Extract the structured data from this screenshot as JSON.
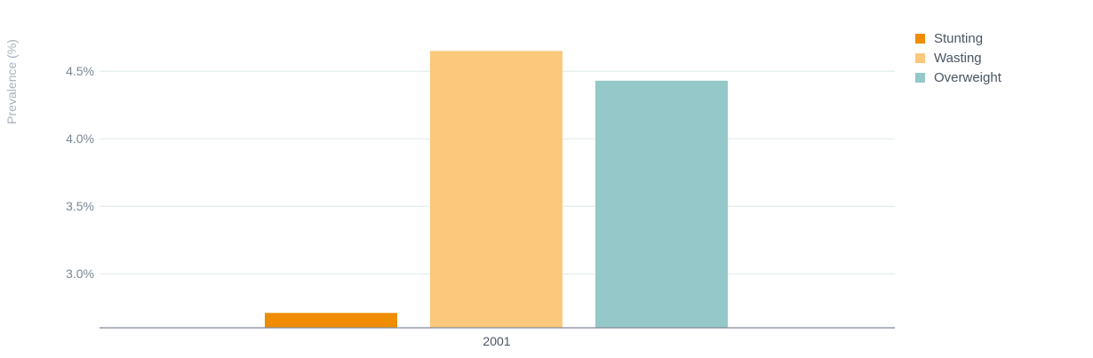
{
  "chart_data": {
    "type": "bar",
    "categories": [
      "2001"
    ],
    "series": [
      {
        "name": "Stunting",
        "values": [
          2.71
        ],
        "color": "#ef8c00"
      },
      {
        "name": "Wasting",
        "values": [
          4.65
        ],
        "color": "#fbc87c"
      },
      {
        "name": "Overweight",
        "values": [
          4.43
        ],
        "color": "#95c8c8"
      }
    ],
    "ylabel": "Prevalence (%)",
    "ylim": [
      2.6,
      4.8
    ],
    "yticks": [
      {
        "value": 3.0,
        "label": "3.0%"
      },
      {
        "value": 3.5,
        "label": "3.5%"
      },
      {
        "value": 4.0,
        "label": "4.0%"
      },
      {
        "value": 4.5,
        "label": "4.5%"
      }
    ],
    "grid": true,
    "legend": "top-right"
  }
}
